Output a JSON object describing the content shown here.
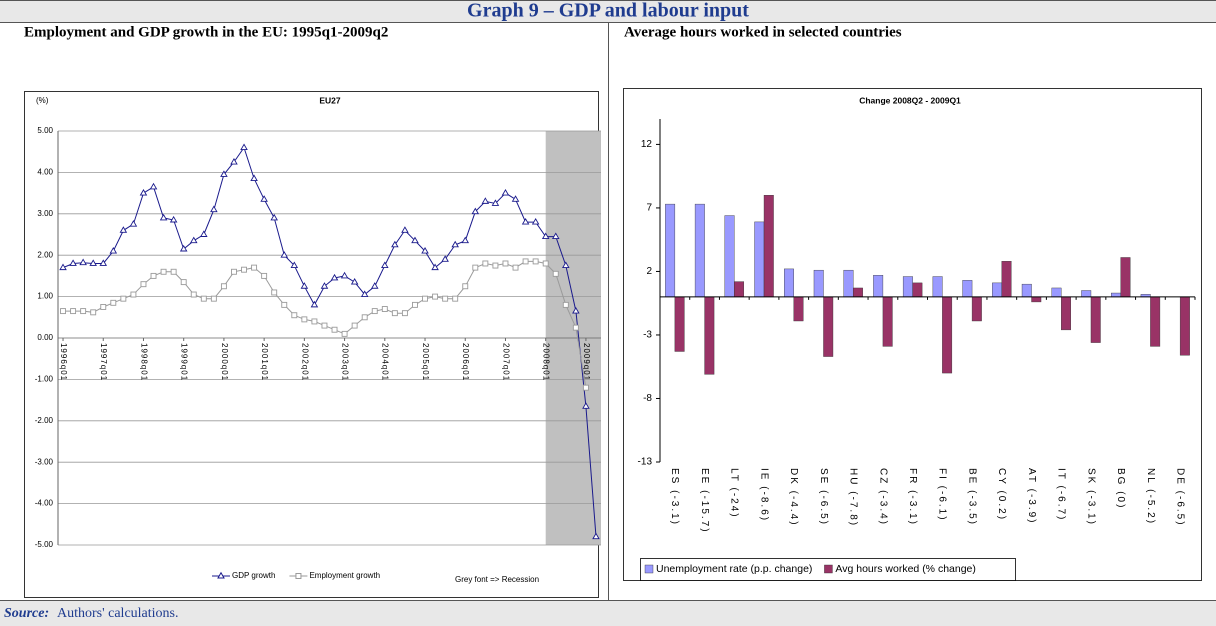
{
  "title": "Graph 9 – GDP and labour input",
  "panels": [
    {
      "title": "Employment and GDP growth in the EU: 1995q1-2009q2"
    },
    {
      "title": "Average hours worked in selected countries"
    }
  ],
  "source": {
    "label": "Source:",
    "text": "Authors' calculations."
  },
  "chart_data": [
    {
      "type": "line",
      "title": "EU27",
      "y_label": "(%)",
      "categories": [
        "1996q01",
        null,
        null,
        null,
        "1997q01",
        null,
        null,
        null,
        "1998q01",
        null,
        null,
        null,
        "1999q01",
        null,
        null,
        null,
        "2000q01",
        null,
        null,
        null,
        "2001q01",
        null,
        null,
        null,
        "2002q01",
        null,
        null,
        null,
        "2003q01",
        null,
        null,
        null,
        "2004q01",
        null,
        null,
        null,
        "2005q01",
        null,
        null,
        null,
        "2006q01",
        null,
        null,
        null,
        "2007q01",
        null,
        null,
        null,
        "2008q01",
        null,
        null,
        null,
        "2009q01",
        null
      ],
      "series": [
        {
          "name": "GDP growth",
          "color": "#1a1a8c",
          "marker": "triangle",
          "values": [
            1.7,
            1.8,
            1.82,
            1.8,
            1.8,
            2.1,
            2.6,
            2.75,
            3.5,
            3.65,
            2.9,
            2.85,
            2.15,
            2.35,
            2.5,
            3.1,
            3.95,
            4.25,
            4.6,
            3.85,
            3.35,
            2.9,
            2.0,
            1.75,
            1.25,
            0.8,
            1.25,
            1.45,
            1.5,
            1.35,
            1.05,
            1.25,
            1.75,
            2.25,
            2.6,
            2.35,
            2.1,
            1.7,
            1.9,
            2.25,
            2.35,
            3.05,
            3.3,
            3.25,
            3.5,
            3.35,
            2.8,
            2.8,
            2.45,
            2.45,
            1.75,
            0.65,
            -1.65,
            -4.8
          ]
        },
        {
          "name": "Employment growth",
          "color": "#9a9a9a",
          "marker": "square",
          "values": [
            0.65,
            0.65,
            0.65,
            0.62,
            0.75,
            0.85,
            0.95,
            1.05,
            1.3,
            1.5,
            1.6,
            1.6,
            1.35,
            1.05,
            0.95,
            0.95,
            1.25,
            1.6,
            1.65,
            1.7,
            1.5,
            1.1,
            0.8,
            0.55,
            0.45,
            0.4,
            0.3,
            0.2,
            0.1,
            0.3,
            0.5,
            0.65,
            0.7,
            0.6,
            0.6,
            0.8,
            0.95,
            1.0,
            0.95,
            0.95,
            1.25,
            1.7,
            1.8,
            1.75,
            1.8,
            1.7,
            1.85,
            1.85,
            1.8,
            1.55,
            0.8,
            0.25,
            -1.2,
            null
          ]
        }
      ],
      "ylim": [
        -5,
        5
      ],
      "yticks": [
        {
          "value": -5,
          "label": "-5.00"
        },
        {
          "value": -4,
          "label": "-4.00"
        },
        {
          "value": -3,
          "label": "-3.00"
        },
        {
          "value": -2,
          "label": "-2.00"
        },
        {
          "value": -1,
          "label": "-1.00"
        },
        {
          "value": 0,
          "label": "0.00"
        },
        {
          "value": 1,
          "label": "1.00"
        },
        {
          "value": 2,
          "label": "2.00"
        },
        {
          "value": 3,
          "label": "3.00"
        },
        {
          "value": 4,
          "label": "4.00"
        },
        {
          "value": 5,
          "label": "5.00"
        }
      ],
      "grid": true,
      "shade_start": "2008q01",
      "shade_color": "#c0c0c0",
      "annotation": "Grey font => Recession",
      "legend": "bottom"
    },
    {
      "type": "bar",
      "title": "Change 2008Q2 - 2009Q1",
      "categories": [
        "ES (-3.1)",
        "EE (-15.7)",
        "LT (-24)",
        "IE (-8.6)",
        "DK (-4.4)",
        "SE (-6.5)",
        "HU (-7.8)",
        "CZ (-3.4)",
        "FR (-3.1)",
        "FI (-6.1)",
        "BE (-3.5)",
        "CY (0.2)",
        "AT (-3.9)",
        "IT (-6.7)",
        "SK (-3.1)",
        "BG (0)",
        "NL (-5.2)",
        "DE (-6.5)"
      ],
      "series": [
        {
          "name": "Unemployment rate (p.p. change)",
          "color": "#9999ff",
          "values": [
            7.3,
            7.3,
            6.4,
            5.9,
            2.2,
            2.1,
            2.1,
            1.7,
            1.6,
            1.6,
            1.3,
            1.1,
            1.0,
            0.7,
            0.5,
            0.3,
            0.2,
            0
          ]
        },
        {
          "name": "Avg hours worked (% change)",
          "color": "#993366",
          "values": [
            -4.3,
            -6.1,
            1.2,
            8.0,
            -1.9,
            -4.7,
            0.7,
            -3.9,
            1.1,
            -6.0,
            -1.9,
            2.8,
            -0.4,
            -2.6,
            -3.6,
            3.1,
            -3.9,
            -4.6
          ]
        }
      ],
      "ylim": [
        -13,
        14
      ],
      "yticks": [
        -13,
        -8,
        -3,
        2,
        7,
        12
      ],
      "grid": false,
      "legend": "bottom"
    }
  ]
}
